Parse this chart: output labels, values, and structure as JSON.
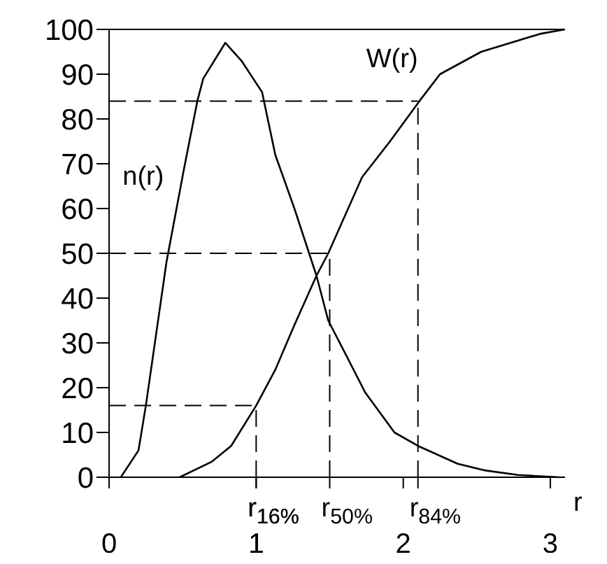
{
  "chart_data": {
    "type": "line",
    "xlabel": "r",
    "xlim": [
      0,
      3.1
    ],
    "ylim": [
      0,
      100
    ],
    "xticks": [
      0,
      1,
      2,
      3
    ],
    "yticks": [
      0,
      10,
      20,
      30,
      40,
      50,
      60,
      70,
      80,
      90,
      100
    ],
    "grid": false,
    "legend": false,
    "marker": "none",
    "line_style": "solid",
    "series": [
      {
        "name": "n(r)",
        "color": "#000000",
        "x": [
          0.08,
          0.2,
          0.25,
          0.39,
          0.51,
          0.6,
          0.64,
          0.79,
          0.9,
          1.04,
          1.13,
          1.26,
          1.41,
          1.49,
          1.6,
          1.74,
          1.94,
          2.1,
          2.37,
          2.56,
          2.78,
          3.06
        ],
        "values": [
          0,
          6,
          16,
          48,
          69,
          84,
          89,
          97,
          93,
          86,
          72,
          60,
          45,
          35,
          28,
          19,
          10,
          7,
          3,
          1.5,
          0.5,
          0
        ]
      },
      {
        "name": "W(r)",
        "color": "#000000",
        "x": [
          0.48,
          0.7,
          0.83,
          1.0,
          1.13,
          1.26,
          1.41,
          1.49,
          1.72,
          1.91,
          2.11,
          2.25,
          2.53,
          2.93,
          3.1
        ],
        "values": [
          0,
          3.5,
          7,
          16,
          24,
          34,
          45,
          50,
          67,
          75,
          84,
          90,
          95,
          99,
          100
        ]
      }
    ],
    "ref_lines": [
      {
        "axis": "x",
        "value": 1,
        "label": "r$_{16%}$",
        "line_style": "dashed"
      },
      {
        "axis": "x",
        "value": 1.5,
        "label": "r$_{50%}$",
        "line_style": "dashed"
      },
      {
        "axis": "x",
        "value": 2.1,
        "label": "r$_{84%}$",
        "line_style": "dashed"
      },
      {
        "axis": "y",
        "value": 16,
        "line_style": "dashed"
      },
      {
        "axis": "y",
        "value": 50,
        "line_style": "dashed"
      },
      {
        "axis": "y",
        "value": 84,
        "line_style": "dashed"
      }
    ]
  }
}
